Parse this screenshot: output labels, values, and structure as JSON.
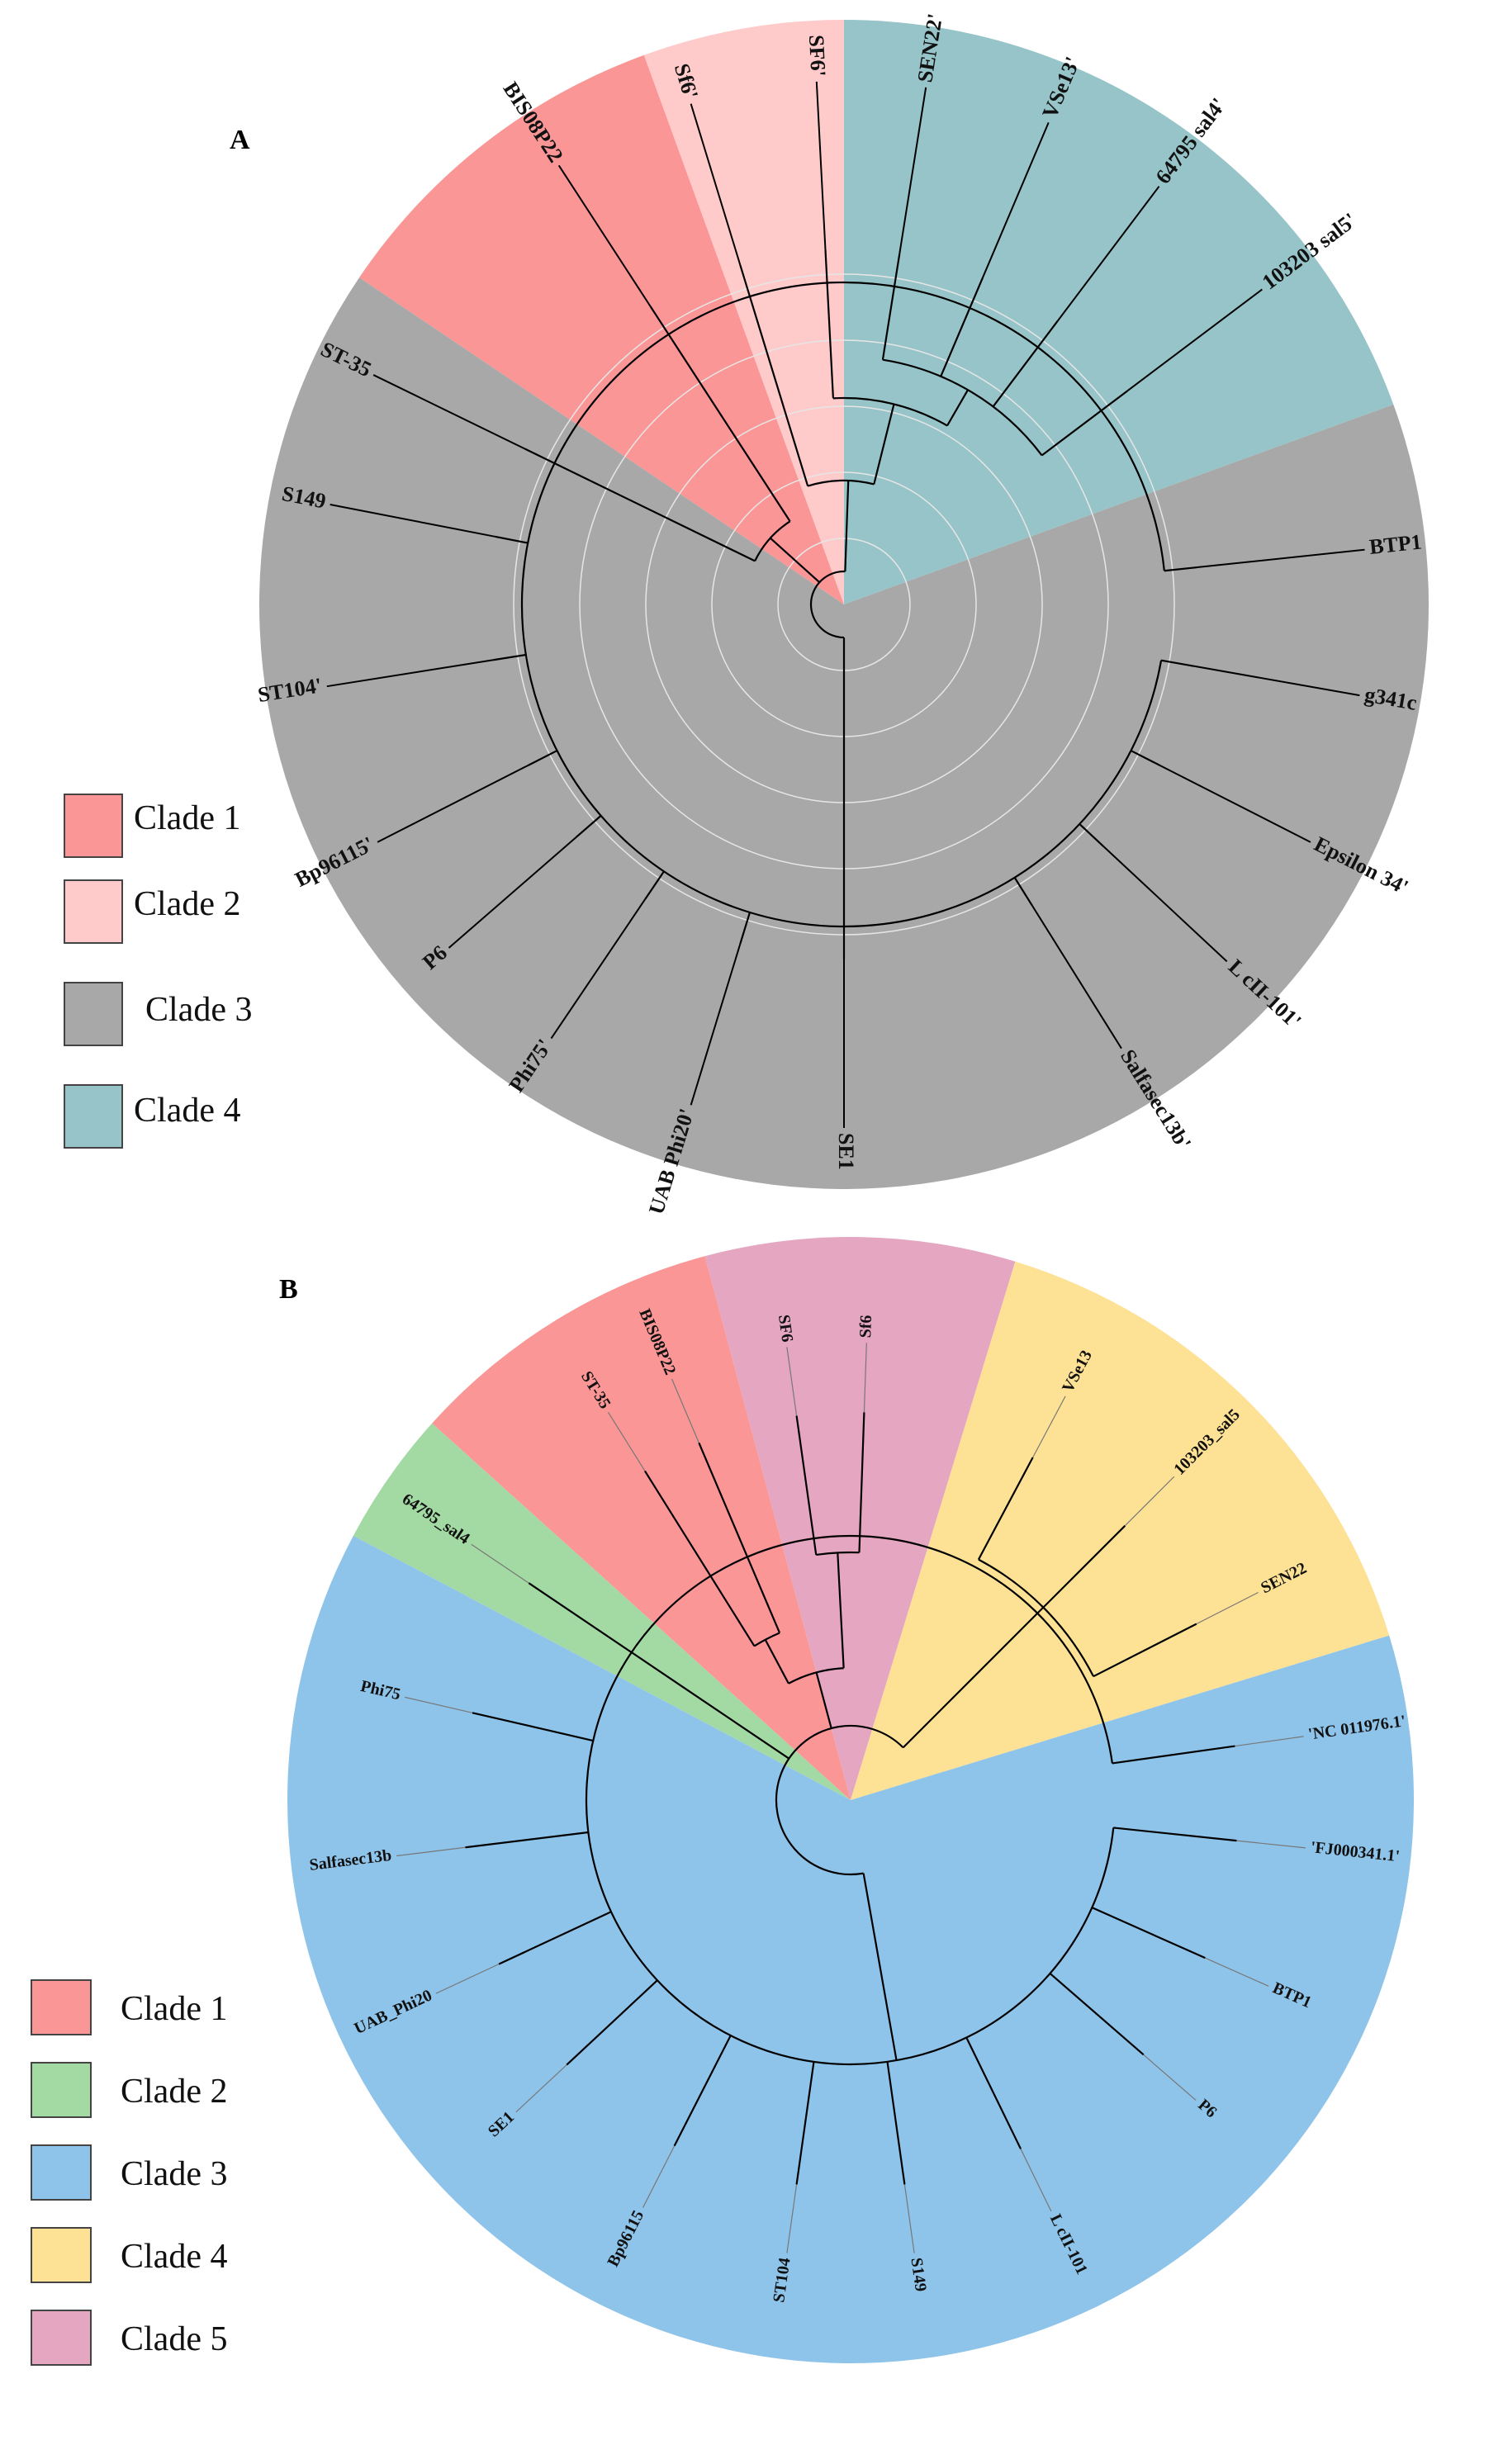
{
  "panel_a": {
    "letter": "A",
    "clades": [
      {
        "name": "Clade 1",
        "color": "#fa9696"
      },
      {
        "name": "Clade 2",
        "color": "#ffcaca"
      },
      {
        "name": "Clade 3",
        "color": "#a8a8a8"
      },
      {
        "name": "Clade 4",
        "color": "#96c4c8"
      }
    ],
    "tips": [
      {
        "label": "ST-35",
        "clade": 1
      },
      {
        "label": "BIS08P22",
        "clade": 1
      },
      {
        "label": "Sf6'",
        "clade": 2
      },
      {
        "label": "SF6'",
        "clade": 4
      },
      {
        "label": "SEN22'",
        "clade": 4
      },
      {
        "label": "VSe13'",
        "clade": 4
      },
      {
        "label": "64795 sal4'",
        "clade": 4
      },
      {
        "label": "103203 sal5'",
        "clade": 4
      },
      {
        "label": "BTP1",
        "clade": 3
      },
      {
        "label": "g341c",
        "clade": 3
      },
      {
        "label": "Epsilon 34'",
        "clade": 3
      },
      {
        "label": "L cII-101'",
        "clade": 3
      },
      {
        "label": "Salfasec13b'",
        "clade": 3
      },
      {
        "label": "SE1",
        "clade": 3
      },
      {
        "label": "UAB Phi20'",
        "clade": 3
      },
      {
        "label": "Phi75'",
        "clade": 3
      },
      {
        "label": "P6",
        "clade": 3
      },
      {
        "label": "Bp96115'",
        "clade": 3
      },
      {
        "label": "ST104'",
        "clade": 3
      },
      {
        "label": "S149",
        "clade": 3
      }
    ]
  },
  "panel_b": {
    "letter": "B",
    "clades": [
      {
        "name": "Clade 1",
        "color": "#fa9696"
      },
      {
        "name": "Clade 2",
        "color": "#a3d9a3"
      },
      {
        "name": "Clade 3",
        "color": "#8fc4ea"
      },
      {
        "name": "Clade 4",
        "color": "#fde195"
      },
      {
        "name": "Clade 5",
        "color": "#e5a6c1"
      }
    ],
    "tips": [
      {
        "label": "64795_sal4",
        "clade": 2
      },
      {
        "label": "ST-35",
        "clade": 1
      },
      {
        "label": "BIS08P22",
        "clade": 1
      },
      {
        "label": "SF6",
        "clade": 5
      },
      {
        "label": "Sf6",
        "clade": 5
      },
      {
        "label": "VSe13",
        "clade": 4
      },
      {
        "label": "103203_sal5",
        "clade": 4
      },
      {
        "label": "SEN22",
        "clade": 4
      },
      {
        "label": "'NC 011976.1'",
        "clade": 3
      },
      {
        "label": "'FJ000341.1'",
        "clade": 3
      },
      {
        "label": "BTP1",
        "clade": 3
      },
      {
        "label": "P6",
        "clade": 3
      },
      {
        "label": "L cII-101",
        "clade": 3
      },
      {
        "label": "S149",
        "clade": 3
      },
      {
        "label": "ST104",
        "clade": 3
      },
      {
        "label": "Bp96115",
        "clade": 3
      },
      {
        "label": "SE1",
        "clade": 3
      },
      {
        "label": "UAB_Phi20",
        "clade": 3
      },
      {
        "label": "Salfasec13b",
        "clade": 3
      },
      {
        "label": "Phi75",
        "clade": 3
      }
    ]
  }
}
